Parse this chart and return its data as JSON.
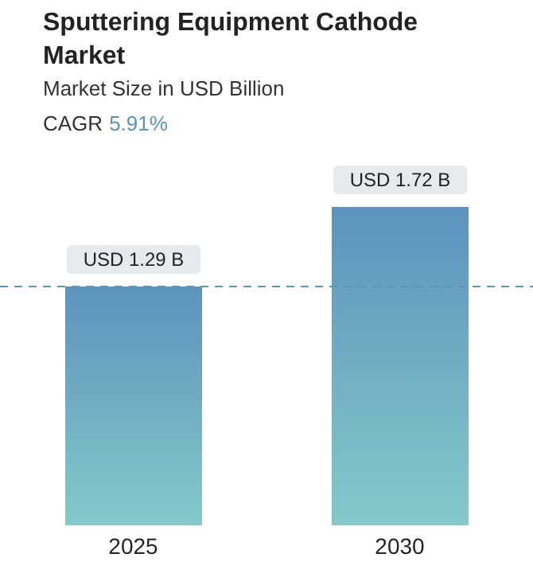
{
  "chart_data": {
    "type": "bar",
    "title": "Sputtering Equipment Cathode Market",
    "subtitle": "Market Size in USD Billion",
    "annotations": [
      "CAGR",
      "5.91%"
    ],
    "categories": [
      "2025",
      "2030"
    ],
    "series": [
      {
        "color": "#5b93bd",
        "values": [
          1.29,
          1.72
        ],
        "value_labels": [
          "USD 1.29 B",
          "USD 1.72 B"
        ]
      }
    ],
    "ref_lines": [
      {
        "axis": "y",
        "value": 1.29,
        "color": "#5b93bd",
        "line_style": "dashed"
      }
    ],
    "tick_labels": "x",
    "legend": false,
    "grid": false
  }
}
